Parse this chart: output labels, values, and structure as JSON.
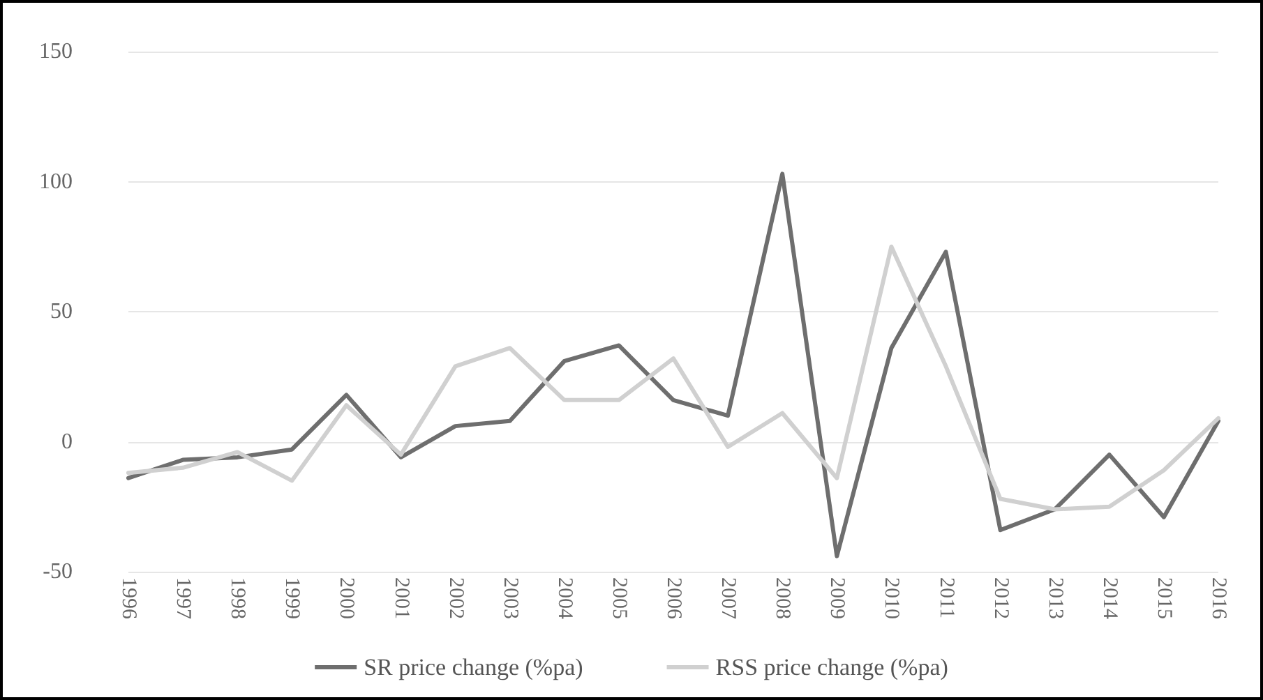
{
  "chart_data": {
    "type": "line",
    "categories": [
      "1996",
      "1997",
      "1998",
      "1999",
      "2000",
      "2001",
      "2002",
      "2003",
      "2004",
      "2005",
      "2006",
      "2007",
      "2008",
      "2009",
      "2010",
      "2011",
      "2012",
      "2013",
      "2014",
      "2015",
      "2016"
    ],
    "series": [
      {
        "name": "SR price change (%pa)",
        "color": "#6e6e6e",
        "values": [
          -14,
          -7,
          -6,
          -3,
          18,
          -6,
          6,
          8,
          31,
          37,
          16,
          10,
          103,
          -44,
          36,
          73,
          -34,
          -26,
          -5,
          -29,
          8
        ]
      },
      {
        "name": "RSS price change (%pa)",
        "color": "#d0d0d0",
        "values": [
          -12,
          -10,
          -4,
          -15,
          14,
          -5,
          29,
          36,
          16,
          16,
          32,
          -2,
          11,
          -14,
          75,
          29,
          -22,
          -26,
          -25,
          -11,
          9
        ]
      }
    ],
    "ylim": [
      -50,
      150
    ],
    "yticks": [
      -50,
      0,
      50,
      100,
      150
    ],
    "grid": "y",
    "legend": "bottom",
    "marker": "none",
    "line_style": "solid"
  }
}
